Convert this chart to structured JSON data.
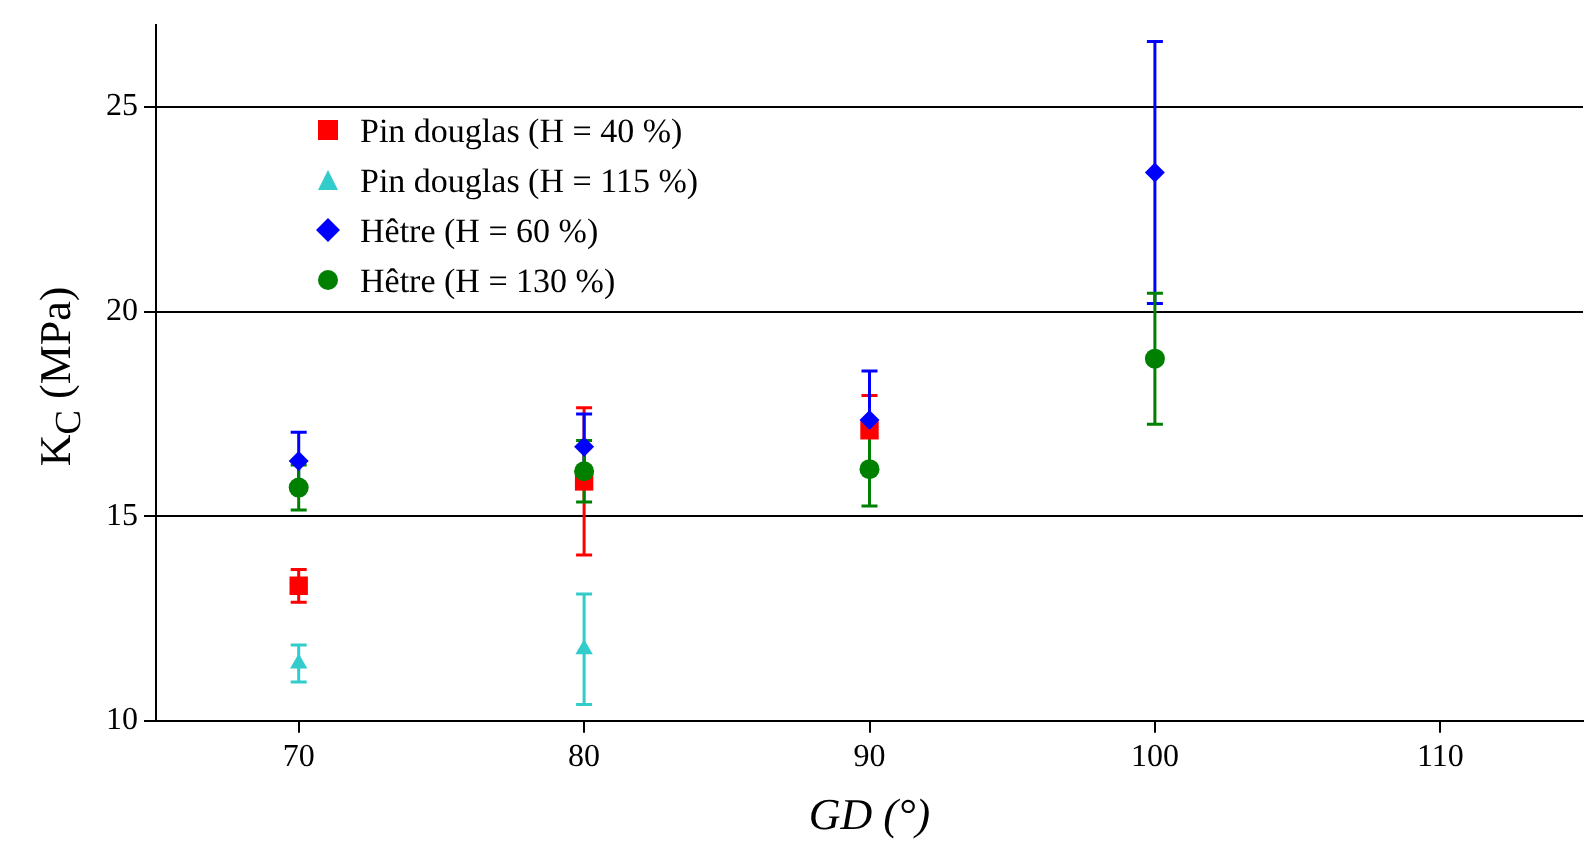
{
  "chart_data": {
    "type": "scatter",
    "xlabel": "GD (°)",
    "ylabel": "K$_{C}$ (MPa)",
    "x": [
      70,
      80,
      90,
      100
    ],
    "xlim": [
      65,
      115
    ],
    "xticks": [
      70,
      80,
      90,
      100,
      110
    ],
    "ylim": [
      10,
      27
    ],
    "yticks": [
      10,
      15,
      20,
      25
    ],
    "grid": "y",
    "legend": "top left",
    "series": [
      {
        "name": "Pin douglas (H = 40 %)",
        "color": "#ff0000",
        "marker": "square",
        "values": [
          13.3,
          15.85,
          17.1,
          null
        ],
        "errors": [
          0.4,
          1.8,
          0.85,
          null
        ]
      },
      {
        "name": "Pin douglas (H = 115 %)",
        "color": "#33cccc",
        "marker": "triangle",
        "values": [
          11.4,
          11.75,
          null,
          null
        ],
        "errors": [
          0.45,
          1.35,
          null,
          null
        ]
      },
      {
        "name": "Hêtre (H = 60 %)",
        "color": "#0000ff",
        "marker": "diamond",
        "values": [
          16.35,
          16.7,
          17.35,
          23.4
        ],
        "errors": [
          0.7,
          0.8,
          1.2,
          3.2
        ]
      },
      {
        "name": "Hêtre (H = 130 %)",
        "color": "#008000",
        "marker": "circle",
        "values": [
          15.7,
          16.1,
          16.15,
          18.85
        ],
        "errors": [
          0.55,
          0.75,
          0.9,
          1.6
        ]
      }
    ]
  }
}
